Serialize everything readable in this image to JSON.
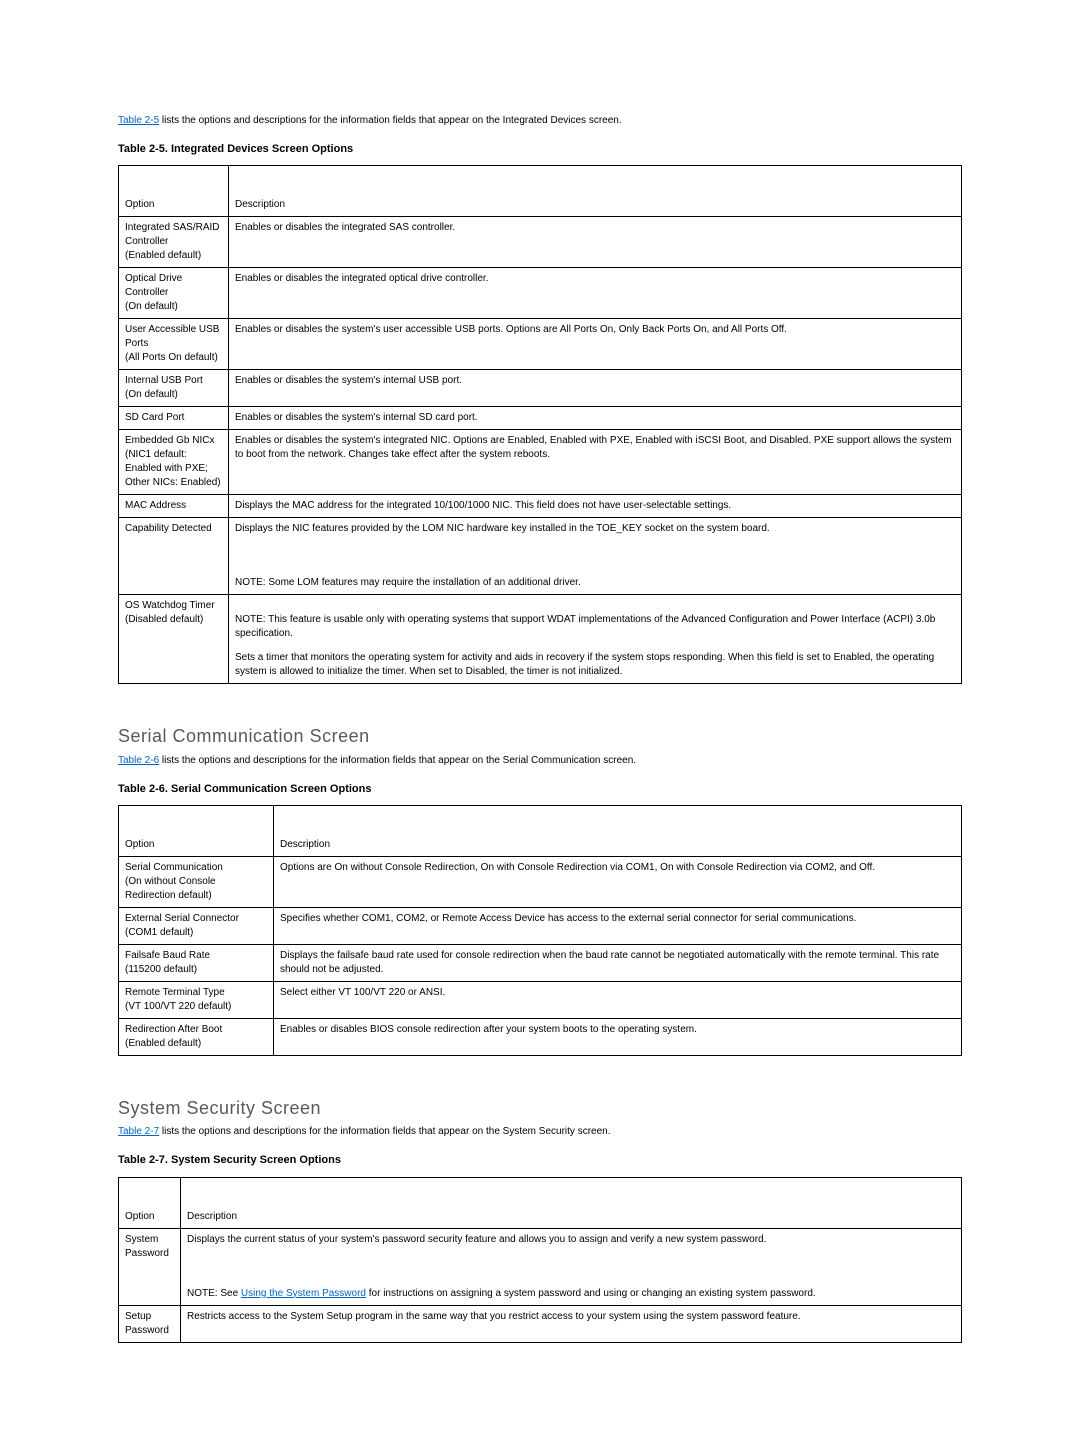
{
  "intro25": {
    "link": "Table 2-5",
    "rest": " lists the options and descriptions for the information fields that appear on the Integrated Devices screen."
  },
  "caption25": "Table 2-5. Integrated Devices Screen Options",
  "headers": {
    "option": "Option",
    "description": "Description"
  },
  "note_label": "NOTE:",
  "table25": {
    "rows": [
      {
        "option": "Integrated SAS/RAID Controller\n(Enabled default)",
        "desc": [
          "Enables or disables the integrated SAS controller."
        ]
      },
      {
        "option": "Optical Drive Controller\n(On default)",
        "desc": [
          "Enables or disables the integrated optical drive controller."
        ]
      },
      {
        "option": "User Accessible USB Ports\n(All Ports On default)",
        "desc": [
          "Enables or disables the system's user accessible USB ports. Options are All Ports On, Only Back Ports On, and All Ports Off."
        ]
      },
      {
        "option": "Internal USB Port\n(On default)",
        "desc": [
          "Enables or disables the system's internal USB port."
        ]
      },
      {
        "option": "SD Card Port",
        "desc": [
          "Enables or disables the system's internal SD card port."
        ]
      },
      {
        "option": "Embedded Gb NICx\n(NIC1 default: Enabled with PXE;\nOther NICs: Enabled)",
        "desc": [
          "Enables or disables the system's integrated NIC. Options are Enabled, Enabled with PXE, Enabled with iSCSI Boot, and Disabled. PXE support allows the system to boot from the network. Changes take effect after the system reboots."
        ]
      },
      {
        "option": "MAC Address",
        "desc": [
          "Displays the MAC address for the integrated 10/100/1000 NIC. This field does not have user-selectable settings."
        ]
      },
      {
        "option": "Capability Detected",
        "desc": [
          "Displays the NIC features provided by the LOM NIC hardware key installed in the TOE_KEY socket on the system board.",
          {
            "note": " Some LOM features may require the installation of an additional driver."
          }
        ],
        "tall_first": true
      },
      {
        "option": "OS Watchdog Timer\n(Disabled default)",
        "desc": [
          {
            "note": " This feature is usable only with operating systems that support WDAT implementations of the Advanced Configuration and Power Interface (ACPI) 3.0b specification."
          },
          "Sets a timer that monitors the operating system for activity and aids in recovery if the system stops responding. When this field is set to Enabled, the operating system is allowed to initialize the timer. When set to Disabled, the timer is not initialized."
        ],
        "lead_gap": true
      }
    ]
  },
  "section26_title": "Serial Communication Screen",
  "intro26": {
    "link": "Table 2-6",
    "rest": " lists the options and descriptions for the information fields that appear on the Serial Communication screen."
  },
  "caption26": "Table 2-6. Serial Communication Screen Options",
  "table26": {
    "rows": [
      {
        "option": "Serial Communication\n(On without Console Redirection default)",
        "desc": [
          "Options are On without Console Redirection, On with Console Redirection via COM1, On with Console Redirection via COM2, and Off."
        ]
      },
      {
        "option": "External Serial Connector\n(COM1 default)",
        "desc": [
          "Specifies whether COM1, COM2, or Remote Access Device has access to the external serial connector for serial communications."
        ]
      },
      {
        "option": "Failsafe Baud Rate\n(115200 default)",
        "desc": [
          "Displays the failsafe baud rate used for console redirection when the baud rate cannot be negotiated automatically with the remote terminal. This rate should not be adjusted."
        ]
      },
      {
        "option": "Remote Terminal Type\n(VT 100/VT 220 default)",
        "desc": [
          "Select either VT 100/VT 220 or ANSI."
        ]
      },
      {
        "option": "Redirection After Boot\n(Enabled default)",
        "desc": [
          "Enables or disables BIOS console redirection after your system boots to the operating system."
        ]
      }
    ]
  },
  "section27_title": "System Security Screen",
  "intro27": {
    "link": "Table 2-7",
    "rest": " lists the options and descriptions for the information fields that appear on the System Security screen."
  },
  "caption27": "Table 2-7. System Security Screen Options",
  "table27": {
    "rows": [
      {
        "option": "System Password",
        "desc": [
          "Displays the current status of your system's password security feature and allows you to assign and verify a new system password.",
          {
            "note_with_link": {
              "before": " See ",
              "link": "Using the System Password",
              "after": " for instructions on assigning a system password and using or changing an existing system password."
            }
          }
        ],
        "tall_first": true
      },
      {
        "option": "Setup Password",
        "desc": [
          "Restricts access to the System Setup program in the same way that you restrict access to your system using the system password feature."
        ]
      }
    ]
  }
}
